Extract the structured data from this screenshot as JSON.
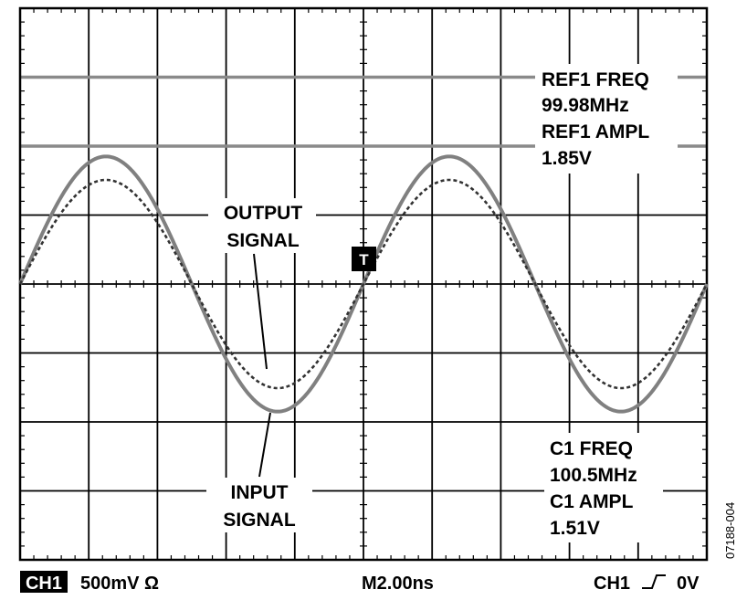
{
  "chart_data": {
    "type": "line",
    "title": "",
    "xlabel": "",
    "ylabel": "",
    "grid": true,
    "divisions": {
      "x": 10,
      "y": 8
    },
    "xlim": [
      0,
      10
    ],
    "ylim": [
      -4,
      4
    ],
    "series": [
      {
        "name": "INPUT SIGNAL",
        "style": "solid",
        "color": "#808080",
        "amplitude_div": 1.85,
        "period_div": 5.0,
        "phase_zero_div": 5.0
      },
      {
        "name": "OUTPUT SIGNAL",
        "style": "dashed",
        "color": "#333333",
        "amplitude_div": 1.51,
        "period_div": 5.0,
        "phase_zero_div": 5.0
      }
    ],
    "annotations": {
      "output_signal": [
        "OUTPUT",
        "SIGNAL"
      ],
      "input_signal": [
        "INPUT",
        "SIGNAL"
      ],
      "ref_readout": [
        "REF1 FREQ",
        "99.98MHz",
        "REF1 AMPL",
        "1.85V"
      ],
      "c1_readout": [
        "C1 FREQ",
        "100.5MHz",
        "C1 AMPL",
        "1.51V"
      ],
      "trigger_marker": "T"
    }
  },
  "status_bar": {
    "channel_badge": "CH1",
    "scale": "500mV Ω",
    "timebase": "M2.00ns",
    "trigger_channel": "CH1",
    "trigger_level": "0V"
  },
  "figure_id": "07188-004"
}
